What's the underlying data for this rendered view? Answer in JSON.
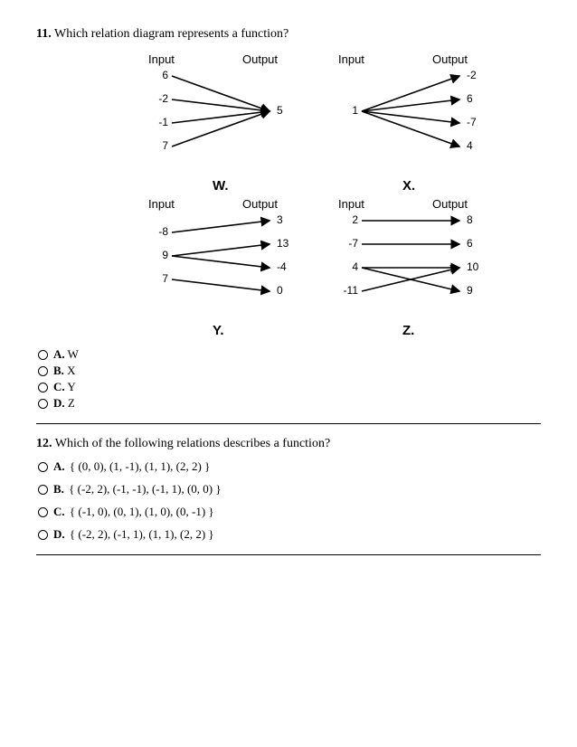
{
  "q11": {
    "number": "11.",
    "text": "Which relation diagram represents a function?",
    "headers": {
      "input": "Input",
      "output": "Output"
    },
    "diagrams": {
      "W": {
        "label": "W.",
        "inputs": [
          "6",
          "-2",
          "-1",
          "7"
        ],
        "outputs": [
          "5"
        ],
        "arrows": [
          [
            0,
            0
          ],
          [
            1,
            0
          ],
          [
            2,
            0
          ],
          [
            3,
            0
          ]
        ]
      },
      "X": {
        "label": "X.",
        "inputs": [
          "1"
        ],
        "outputs": [
          "-2",
          "6",
          "-7",
          "4"
        ],
        "arrows": [
          [
            0,
            0
          ],
          [
            0,
            1
          ],
          [
            0,
            2
          ],
          [
            0,
            3
          ]
        ]
      },
      "Y": {
        "label": "Y.",
        "inputs": [
          "-8",
          "9",
          "7"
        ],
        "outputs": [
          "3",
          "13",
          "-4",
          "0"
        ],
        "arrows": [
          [
            0,
            0
          ],
          [
            1,
            1
          ],
          [
            1,
            2
          ],
          [
            2,
            3
          ]
        ]
      },
      "Z": {
        "label": "Z.",
        "inputs": [
          "2",
          "-7",
          "4",
          "-11"
        ],
        "outputs": [
          "8",
          "6",
          "10",
          "9"
        ],
        "arrows": [
          [
            0,
            0
          ],
          [
            1,
            1
          ],
          [
            2,
            2
          ],
          [
            2,
            3
          ],
          [
            3,
            2
          ]
        ]
      }
    },
    "options": [
      {
        "letter": "A.",
        "text": "W"
      },
      {
        "letter": "B.",
        "text": "X"
      },
      {
        "letter": "C.",
        "text": "Y"
      },
      {
        "letter": "D.",
        "text": "Z"
      }
    ]
  },
  "q12": {
    "number": "12.",
    "text": "Which of the following relations describes a function?",
    "options": [
      {
        "letter": "A.",
        "text": "{ (0, 0), (1, -1), (1, 1), (2, 2) }"
      },
      {
        "letter": "B.",
        "text": "{ (-2, 2), (-1, -1), (-1, 1), (0, 0) }"
      },
      {
        "letter": "C.",
        "text": "{ (-1, 0), (0, 1), (1, 0), (0, -1) }"
      },
      {
        "letter": "D.",
        "text": "{ (-2, 2), (-1, 1), (1, 1), (2, 2) }"
      }
    ]
  },
  "style": {
    "arrow_color": "#000000",
    "arrow_width": 1.6,
    "head_size": 7
  }
}
